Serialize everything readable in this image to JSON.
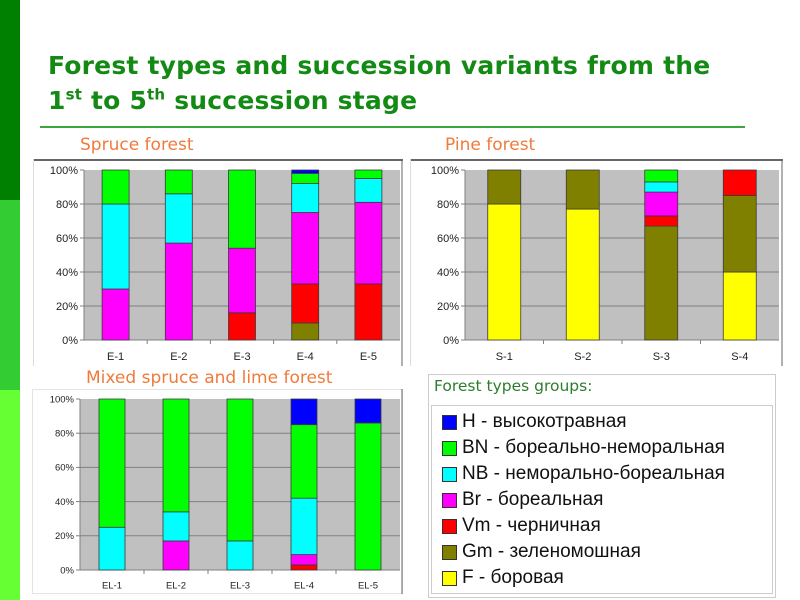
{
  "title": {
    "line1": "Forest types and succession variants from the",
    "line2_num1": "1",
    "line2_sup1": "st",
    "line2_mid": " to 5",
    "line2_sup2": "th",
    "line2_end": " succession stage"
  },
  "legend": {
    "title": "Forest types groups:",
    "items": [
      {
        "key": "H",
        "label": "H - высокотравная",
        "color": "#0000ff"
      },
      {
        "key": "BN",
        "label": "BN - бореально-неморальная",
        "color": "#00ff00"
      },
      {
        "key": "NB",
        "label": "NB - неморально-бореальная",
        "color": "#00ffff"
      },
      {
        "key": "Br",
        "label": "Br - бореальная",
        "color": "#ff00ff"
      },
      {
        "key": "Vm",
        "label": "Vm - черничная",
        "color": "#ff0000"
      },
      {
        "key": "Gm",
        "label": "Gm - зеленомошная",
        "color": "#808000"
      },
      {
        "key": "F",
        "label": "F - боровая",
        "color": "#ffff00"
      }
    ]
  },
  "chart_data": [
    {
      "type": "bar",
      "stacked": "percent",
      "title": "Spruce forest",
      "categories": [
        "E-1",
        "E-2",
        "E-3",
        "E-4",
        "E-5"
      ],
      "yticks": [
        "0%",
        "20%",
        "40%",
        "60%",
        "80%",
        "100%"
      ],
      "ylim": [
        0,
        100
      ],
      "grid": true,
      "series": [
        {
          "name": "F",
          "values": [
            0,
            0,
            0,
            0,
            0
          ]
        },
        {
          "name": "Gm",
          "values": [
            0,
            0,
            0,
            10,
            0
          ]
        },
        {
          "name": "Vm",
          "values": [
            0,
            0,
            16,
            23,
            33
          ]
        },
        {
          "name": "Br",
          "values": [
            30,
            57,
            38,
            42,
            48
          ]
        },
        {
          "name": "NB",
          "values": [
            50,
            29,
            0,
            17,
            14
          ]
        },
        {
          "name": "BN",
          "values": [
            20,
            14,
            46,
            6,
            5
          ]
        },
        {
          "name": "H",
          "values": [
            0,
            0,
            0,
            2,
            0
          ]
        }
      ]
    },
    {
      "type": "bar",
      "stacked": "percent",
      "title": "Pine forest",
      "categories": [
        "S-1",
        "S-2",
        "S-3",
        "S-4"
      ],
      "yticks": [
        "0%",
        "20%",
        "40%",
        "60%",
        "80%",
        "100%"
      ],
      "ylim": [
        0,
        100
      ],
      "grid": true,
      "series": [
        {
          "name": "F",
          "values": [
            80,
            77,
            0,
            40
          ]
        },
        {
          "name": "Gm",
          "values": [
            20,
            23,
            67,
            45
          ]
        },
        {
          "name": "Vm",
          "values": [
            0,
            0,
            6,
            15
          ]
        },
        {
          "name": "Br",
          "values": [
            0,
            0,
            14,
            0
          ]
        },
        {
          "name": "NB",
          "values": [
            0,
            0,
            6,
            0
          ]
        },
        {
          "name": "BN",
          "values": [
            0,
            0,
            7,
            0
          ]
        },
        {
          "name": "H",
          "values": [
            0,
            0,
            0,
            0
          ]
        }
      ]
    },
    {
      "type": "bar",
      "stacked": "percent",
      "title": "Mixed spruce and lime forest",
      "categories": [
        "EL-1",
        "EL-2",
        "EL-3",
        "EL-4",
        "EL-5"
      ],
      "yticks": [
        "0%",
        "20%",
        "40%",
        "60%",
        "80%",
        "100%"
      ],
      "ylim": [
        0,
        100
      ],
      "grid": true,
      "series": [
        {
          "name": "F",
          "values": [
            0,
            0,
            0,
            0,
            0
          ]
        },
        {
          "name": "Gm",
          "values": [
            0,
            0,
            0,
            0,
            0
          ]
        },
        {
          "name": "Vm",
          "values": [
            0,
            0,
            0,
            3,
            0
          ]
        },
        {
          "name": "Br",
          "values": [
            0,
            17,
            0,
            6,
            0
          ]
        },
        {
          "name": "NB",
          "values": [
            25,
            17,
            17,
            33,
            0
          ]
        },
        {
          "name": "BN",
          "values": [
            75,
            66,
            83,
            43,
            86
          ]
        },
        {
          "name": "H",
          "values": [
            0,
            0,
            0,
            15,
            14
          ]
        }
      ]
    }
  ]
}
